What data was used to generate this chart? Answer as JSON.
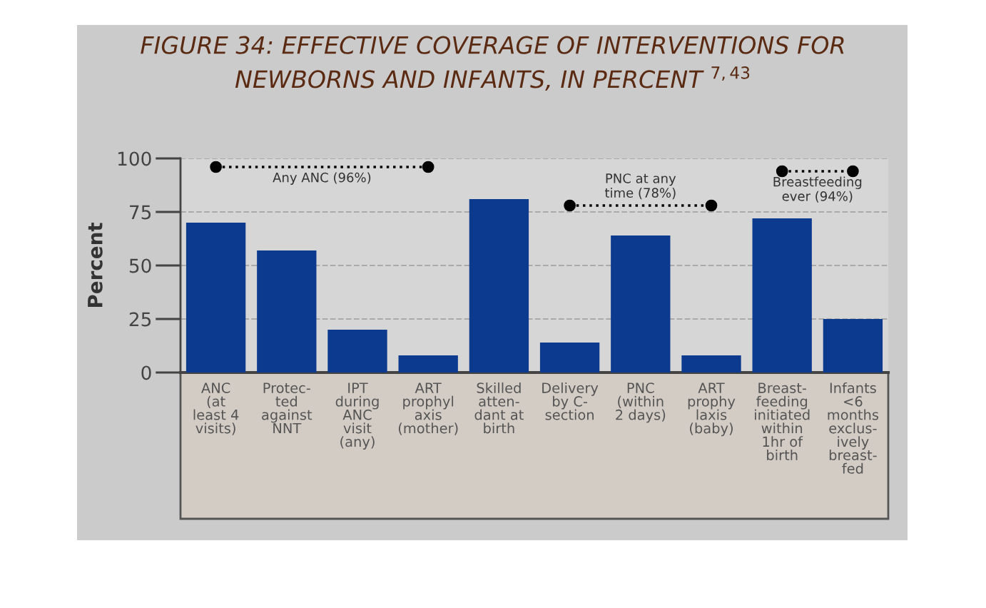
{
  "chart_data": {
    "type": "bar",
    "title": "FIGURE 34: EFFECTIVE COVERAGE OF INTERVENTIONS FOR\nNEWBORNS AND INFANTS, IN PERCENT $^{7,43}$",
    "ylabel": "Percent",
    "categories": [
      "ANC\n(at\nleast 4\nvisits)",
      "Protec-\nted\nagainst\nNNT",
      "IPT\nduring\nANC\nvisit\n(any)",
      "ART\nprophyl\naxis\n(mother)",
      "Skilled\natten-\ndant at\nbirth",
      "Delivery\nby C-\nsection",
      "PNC\n(within\n2 days)",
      "ART\nprophy\nlaxis\n(baby)",
      "Breast-\nfeeding\ninitiated\nwithin\n1hr of\nbirth",
      "Infants\n<6\nmonths\nexclus-\nively\nbreast-\nfed"
    ],
    "series": [
      {
        "color": "#0b3a8e",
        "values": [
          70,
          57,
          20,
          8,
          81,
          14,
          64,
          8,
          72,
          25
        ]
      },
      {
        "type": "line",
        "name": "Any ANC (96%)",
        "color": "#000000",
        "values": [
          96,
          96,
          96,
          96,
          null,
          null,
          null,
          null,
          null,
          null
        ]
      },
      {
        "type": "line",
        "name": "PNC at any\ntime (78%)",
        "color": "#000000",
        "values": [
          null,
          null,
          null,
          null,
          null,
          78,
          78,
          78,
          null,
          null
        ]
      },
      {
        "type": "line",
        "name": "Breastfeeding\never (94%)",
        "color": "#000000",
        "values": [
          null,
          null,
          null,
          null,
          null,
          null,
          null,
          null,
          94,
          94
        ]
      }
    ],
    "ylim": [
      0,
      100
    ],
    "yticks": [
      0,
      25,
      50,
      75,
      100
    ],
    "grid": "y",
    "legend": false,
    "line_style": "dotted",
    "marker": "circle"
  }
}
